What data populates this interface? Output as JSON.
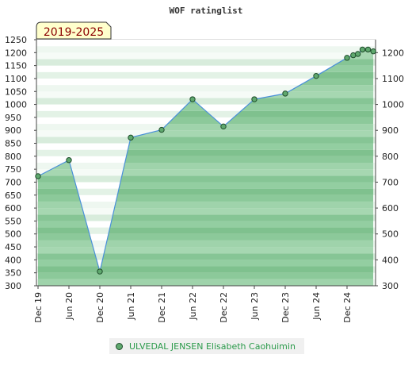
{
  "chart_data": {
    "type": "area",
    "title": "WOF ratinglist",
    "period_badge": "2019-2025",
    "ylim": [
      300,
      1250
    ],
    "yticks_left": [
      300,
      350,
      400,
      450,
      500,
      550,
      600,
      650,
      700,
      750,
      800,
      850,
      900,
      950,
      1000,
      1050,
      1100,
      1150,
      1200,
      1250
    ],
    "yticks_right": [
      300,
      400,
      500,
      600,
      700,
      800,
      900,
      1000,
      1100,
      1200
    ],
    "x_categories": [
      "Dec 19",
      "Jun 20",
      "Dec 20",
      "Jun 21",
      "Dec 21",
      "Jun 22",
      "Dec 22",
      "Jun 23",
      "Dec 23",
      "Jun 24",
      "Dec 24"
    ],
    "grid": true,
    "legend_position": "bottom",
    "series": [
      {
        "name": "ULVEDAL JENSEN Elisabeth Caohuimin",
        "color": "#5fa86e",
        "points": [
          {
            "x": 0,
            "y": 723
          },
          {
            "x": 1,
            "y": 785
          },
          {
            "x": 2,
            "y": 355
          },
          {
            "x": 3,
            "y": 872
          },
          {
            "x": 4,
            "y": 902
          },
          {
            "x": 5,
            "y": 1020
          },
          {
            "x": 6,
            "y": 915
          },
          {
            "x": 7,
            "y": 1020
          },
          {
            "x": 8,
            "y": 1042
          },
          {
            "x": 9,
            "y": 1110
          },
          {
            "x": 10,
            "y": 1180
          },
          {
            "x": 10.2,
            "y": 1190
          },
          {
            "x": 10.35,
            "y": 1195
          },
          {
            "x": 10.5,
            "y": 1212
          },
          {
            "x": 10.68,
            "y": 1212
          },
          {
            "x": 10.85,
            "y": 1205
          }
        ]
      }
    ]
  }
}
